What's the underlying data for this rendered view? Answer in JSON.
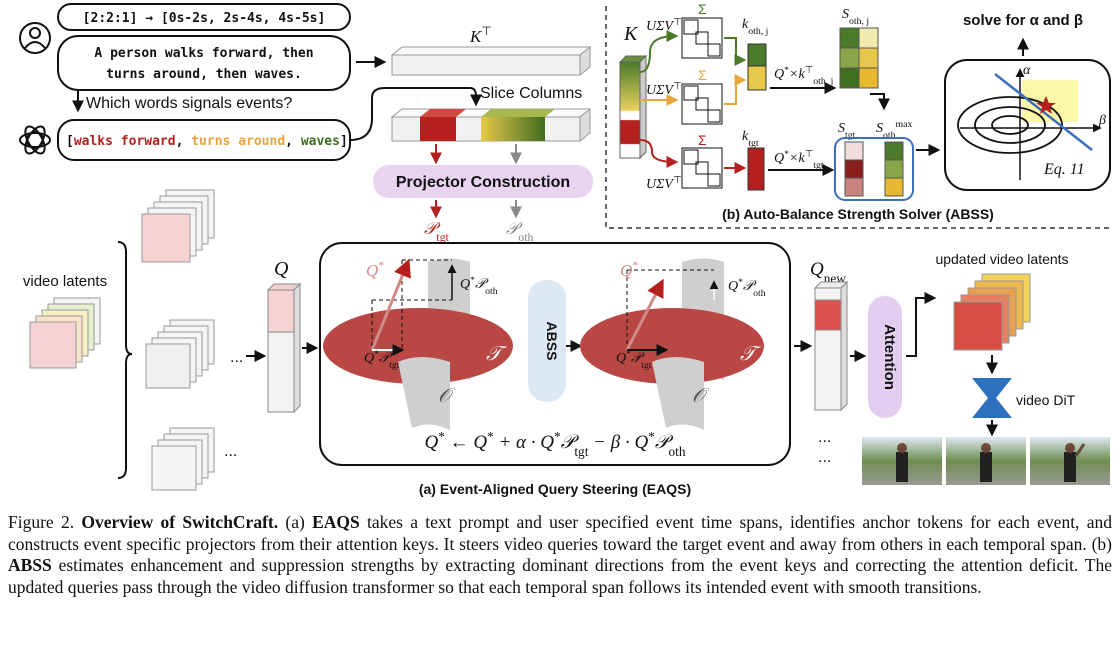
{
  "figure": {
    "eaqs": {
      "prompt_timing": "[2:2:1] → [0s-2s, 2s-4s, 4s-5s]",
      "prompt_lines": [
        "A person walks forward, then",
        "turns around, then waves."
      ],
      "question": "Which words signals events?",
      "answer": {
        "open": "[",
        "separator": ",",
        "close": "]",
        "events": [
          {
            "text": "walks forward",
            "color": "#b3201d"
          },
          {
            "text": "turns around",
            "color": "#e9a43b"
          },
          {
            "text": "waves",
            "color": "#3f6e1f"
          }
        ]
      },
      "key_label": [
        {
          "text": "K"
        },
        {
          "text": "⊤",
          "pos": "sup"
        }
      ],
      "slice_label": "Slice Columns",
      "projector_label": "Projector Construction",
      "projector_tgt": [
        {
          "text": "𝒫"
        },
        {
          "text": "tgt",
          "pos": "sub"
        }
      ],
      "projector_oth": [
        {
          "text": "𝒫"
        },
        {
          "text": "oth",
          "pos": "sub"
        }
      ],
      "video_latents_label": "video latents",
      "ellipsis": "...",
      "query_label": [
        {
          "text": "Q"
        }
      ],
      "q_star": [
        {
          "text": "Q"
        },
        {
          "text": "*",
          "pos": "sup"
        }
      ],
      "q_oth": [
        {
          "text": "Q"
        },
        {
          "text": "*",
          "pos": "sup"
        },
        {
          "text": "𝒫"
        },
        {
          "text": "oth",
          "pos": "sub"
        }
      ],
      "q_tgt": [
        {
          "text": "Q"
        },
        {
          "text": "*",
          "pos": "sup"
        },
        {
          "text": "𝒫"
        },
        {
          "text": "tgt",
          "pos": "sub"
        }
      ],
      "target_space": "𝒯",
      "other_space": "𝒪",
      "abss_label": "ABSS",
      "equation": [
        {
          "text": "Q"
        },
        {
          "text": "*",
          "pos": "sup"
        },
        {
          "text": " ← Q"
        },
        {
          "text": "*",
          "pos": "sup"
        },
        {
          "text": " + α · Q"
        },
        {
          "text": "*",
          "pos": "sup"
        },
        {
          "text": "𝒫"
        },
        {
          "text": "tgt",
          "pos": "sub"
        },
        {
          "text": " − β · Q"
        },
        {
          "text": "*",
          "pos": "sup"
        },
        {
          "text": "𝒫"
        },
        {
          "text": "oth",
          "pos": "sub"
        }
      ],
      "query_new_label": [
        {
          "text": "Q"
        },
        {
          "text": "new",
          "pos": "sub"
        }
      ],
      "attention_label": "Attention",
      "updated_label": "updated video latents",
      "dit_label": "video DiT",
      "panel_title": "(a) Event-Aligned Query Steering (EAQS)"
    },
    "abss": {
      "key_label": "K",
      "svd_label": [
        {
          "text": "UΣV"
        },
        {
          "text": "⊤",
          "pos": "sup"
        }
      ],
      "sigma_label": "Σ",
      "k_oth_label": [
        {
          "text": "k"
        },
        {
          "text": "oth, j",
          "pos": "sub"
        }
      ],
      "k_tgt_label": [
        {
          "text": "k"
        },
        {
          "text": "tgt",
          "pos": "sub"
        }
      ],
      "q_k_oth": [
        {
          "text": "Q"
        },
        {
          "text": "*",
          "pos": "sup"
        },
        {
          "text": "×k"
        },
        {
          "text": "⊤",
          "pos": "sup"
        },
        {
          "text": "oth, j",
          "pos": "sub"
        }
      ],
      "q_k_tgt": [
        {
          "text": "Q"
        },
        {
          "text": "*",
          "pos": "sup"
        },
        {
          "text": "×k"
        },
        {
          "text": "⊤",
          "pos": "sup"
        },
        {
          "text": "tgt",
          "pos": "sub"
        }
      ],
      "s_oth_label": [
        {
          "text": "S"
        },
        {
          "text": "oth, j",
          "pos": "sub"
        }
      ],
      "s_tgt_label": [
        {
          "text": "S"
        },
        {
          "text": "tgt",
          "pos": "sub"
        }
      ],
      "s_max_label": [
        {
          "text": "S"
        },
        {
          "text": "oth",
          "pos": "sub"
        },
        {
          "text": "max",
          "pos": "sup"
        }
      ],
      "solve_label": "solve for α and β",
      "alpha": "α",
      "beta": "β",
      "eq_ref": "Eq. 11",
      "panel_title": "(b) Auto-Balance Strength Solver (ABSS)"
    },
    "caption": [
      {
        "text": "Figure 2. ",
        "bold": false
      },
      {
        "text": "Overview of SwitchCraft.",
        "bold": true
      },
      {
        "text": " (a) ",
        "bold": false
      },
      {
        "text": "EAQS",
        "bold": true
      },
      {
        "text": " takes a text prompt and user specified event time spans, identifies anchor tokens for each event, and constructs event specific projectors from their attention keys. It steers video queries toward the target event and away from others in each temporal span. (b) ",
        "bold": false
      },
      {
        "text": "ABSS",
        "bold": true
      },
      {
        "text": " estimates enhancement and suppression strengths by extracting dominant directions from the event keys and correcting the attention deficit. The updated queries pass through the video diffusion transformer so that each temporal span follows its intended event with smooth transitions.",
        "bold": false
      }
    ]
  }
}
